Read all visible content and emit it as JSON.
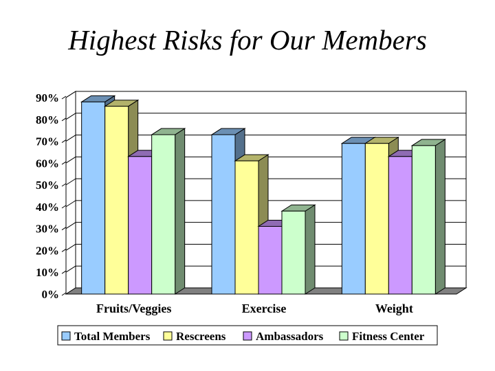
{
  "chart_data": {
    "type": "bar",
    "title": "Highest Risks for Our Members",
    "categories": [
      "Fruits/Veggies",
      "Exercise",
      "Weight"
    ],
    "series": [
      {
        "name": "Total Members",
        "values": [
          88,
          73,
          69
        ],
        "color": "#99ccff"
      },
      {
        "name": "Rescreens",
        "values": [
          86,
          61,
          69
        ],
        "color": "#ffff99"
      },
      {
        "name": "Ambassadors",
        "values": [
          63,
          31,
          63
        ],
        "color": "#cc99ff"
      },
      {
        "name": "Fitness Center",
        "values": [
          73,
          38,
          68
        ],
        "color": "#ccffcc"
      }
    ],
    "ylim": [
      0,
      90
    ],
    "yticks": [
      "0%",
      "10%",
      "20%",
      "30%",
      "40%",
      "50%",
      "60%",
      "70%",
      "80%",
      "90%"
    ],
    "grid": true,
    "legend": "bottom",
    "colors": {
      "floor": "#808080",
      "wall": "#ffffff",
      "edge": "#000000"
    }
  }
}
